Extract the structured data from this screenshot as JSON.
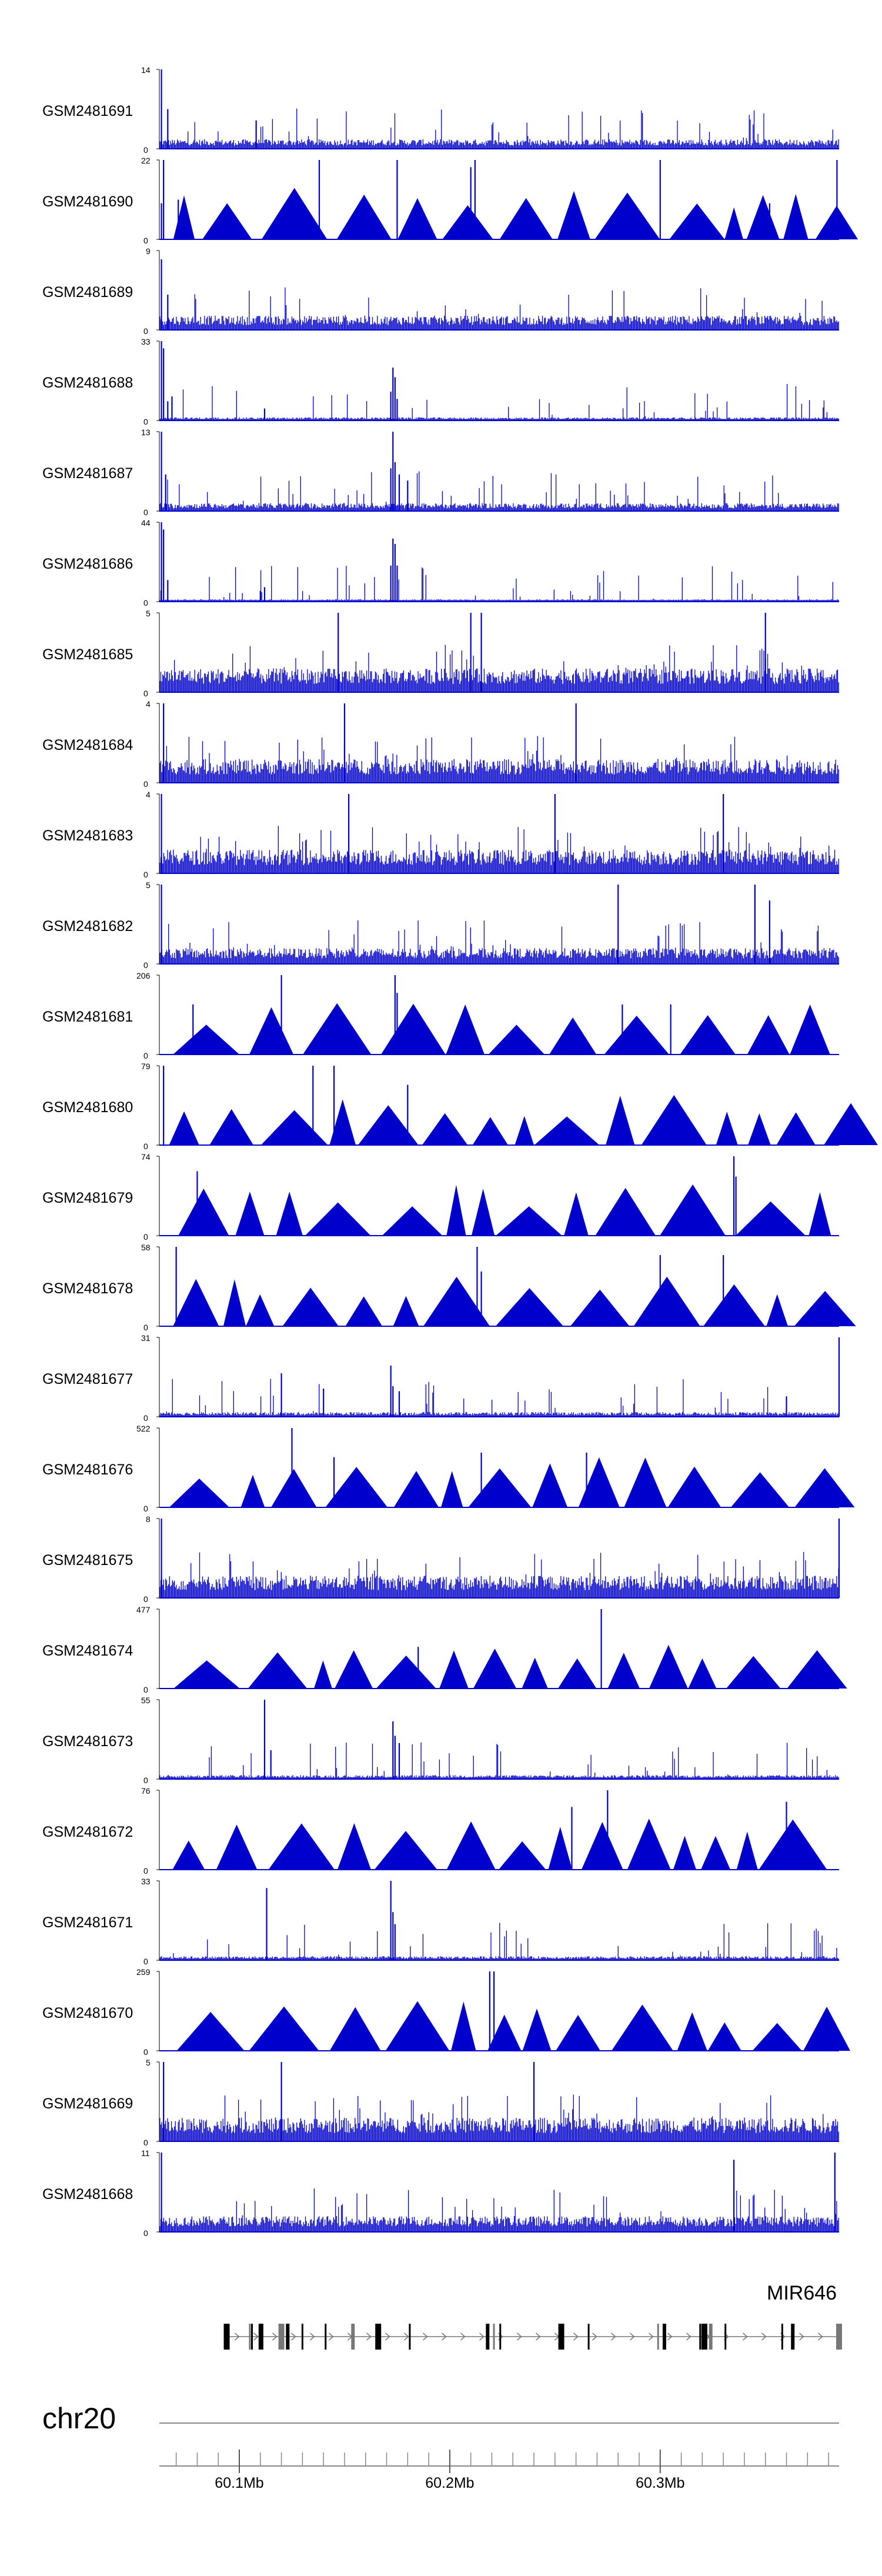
{
  "chart_data": {
    "type": "area",
    "chromosome": "chr20",
    "region_mb": [
      60.062,
      60.385
    ],
    "bar_color": "#0000cc",
    "tracks": [
      {
        "name": "GSM2481691",
        "ymax": 14,
        "ymin": 0,
        "style": "dense",
        "baseline": 0.12,
        "peaks": [
          [
            60.063,
            14
          ],
          [
            60.066,
            7
          ],
          [
            60.108,
            5
          ]
        ]
      },
      {
        "name": "GSM2481690",
        "ymax": 22,
        "ymin": 0,
        "style": "sparse",
        "baseline": 0,
        "peaks": [
          [
            60.063,
            10
          ],
          [
            60.064,
            22
          ],
          [
            60.071,
            11
          ],
          [
            60.138,
            22
          ],
          [
            60.175,
            22
          ],
          [
            60.21,
            20
          ],
          [
            60.212,
            22
          ],
          [
            60.3,
            22
          ],
          [
            60.352,
            10
          ],
          [
            60.384,
            22
          ]
        ]
      },
      {
        "name": "GSM2481689",
        "ymax": 9,
        "ymin": 0,
        "style": "dense",
        "baseline": 0.18,
        "peaks": [
          [
            60.063,
            8
          ],
          [
            60.066,
            4
          ]
        ]
      },
      {
        "name": "GSM2481688",
        "ymax": 33,
        "ymin": 0,
        "style": "dense",
        "baseline": 0.04,
        "peaks": [
          [
            60.063,
            33
          ],
          [
            60.064,
            30
          ],
          [
            60.066,
            8
          ],
          [
            60.068,
            10
          ],
          [
            60.112,
            5
          ],
          [
            60.172,
            12
          ],
          [
            60.173,
            22
          ],
          [
            60.174,
            18
          ],
          [
            60.175,
            9
          ]
        ]
      },
      {
        "name": "GSM2481687",
        "ymax": 13,
        "ymin": 0,
        "style": "dense",
        "baseline": 0.1,
        "peaks": [
          [
            60.063,
            13
          ],
          [
            60.065,
            6
          ],
          [
            60.172,
            7
          ],
          [
            60.173,
            13
          ],
          [
            60.174,
            8
          ],
          [
            60.176,
            6
          ],
          [
            60.18,
            5
          ]
        ]
      },
      {
        "name": "GSM2481686",
        "ymax": 44,
        "ymin": 0,
        "style": "dense",
        "baseline": 0.03,
        "peaks": [
          [
            60.063,
            44
          ],
          [
            60.064,
            40
          ],
          [
            60.066,
            12
          ],
          [
            60.11,
            6
          ],
          [
            60.112,
            8
          ],
          [
            60.172,
            20
          ],
          [
            60.173,
            35
          ],
          [
            60.174,
            32
          ],
          [
            60.175,
            20
          ]
        ]
      },
      {
        "name": "GSM2481685",
        "ymax": 5,
        "ymin": 0,
        "style": "dense",
        "baseline": 0.3,
        "peaks": [
          [
            60.147,
            5
          ],
          [
            60.21,
            5
          ],
          [
            60.215,
            5
          ],
          [
            60.35,
            5
          ]
        ]
      },
      {
        "name": "GSM2481684",
        "ymax": 4,
        "ymin": 0,
        "style": "dense",
        "baseline": 0.3,
        "peaks": [
          [
            60.064,
            4
          ],
          [
            60.15,
            4
          ],
          [
            60.26,
            4
          ]
        ]
      },
      {
        "name": "GSM2481683",
        "ymax": 4,
        "ymin": 0,
        "style": "dense",
        "baseline": 0.3,
        "peaks": [
          [
            60.063,
            4
          ],
          [
            60.152,
            4
          ],
          [
            60.25,
            4
          ],
          [
            60.33,
            4
          ]
        ]
      },
      {
        "name": "GSM2481682",
        "ymax": 5,
        "ymin": 0,
        "style": "dense",
        "baseline": 0.2,
        "peaks": [
          [
            60.063,
            5
          ],
          [
            60.28,
            5
          ],
          [
            60.345,
            5
          ],
          [
            60.352,
            4
          ]
        ]
      },
      {
        "name": "GSM2481681",
        "ymax": 206,
        "ymin": 0,
        "style": "sparse",
        "baseline": 0,
        "peaks": [
          [
            60.078,
            130
          ],
          [
            60.12,
            206
          ],
          [
            60.174,
            206
          ],
          [
            60.175,
            160
          ],
          [
            60.282,
            130
          ],
          [
            60.305,
            130
          ]
        ]
      },
      {
        "name": "GSM2481680",
        "ymax": 79,
        "ymin": 0,
        "style": "sparse",
        "baseline": 0,
        "peaks": [
          [
            60.064,
            79
          ],
          [
            60.135,
            79
          ],
          [
            60.145,
            79
          ],
          [
            60.18,
            60
          ]
        ]
      },
      {
        "name": "GSM2481679",
        "ymax": 74,
        "ymin": 0,
        "style": "sparse",
        "baseline": 0,
        "peaks": [
          [
            60.08,
            60
          ],
          [
            60.335,
            74
          ],
          [
            60.336,
            55
          ]
        ]
      },
      {
        "name": "GSM2481678",
        "ymax": 58,
        "ymin": 0,
        "style": "sparse",
        "baseline": 0,
        "peaks": [
          [
            60.07,
            58
          ],
          [
            60.213,
            58
          ],
          [
            60.215,
            40
          ],
          [
            60.3,
            52
          ],
          [
            60.33,
            52
          ]
        ]
      },
      {
        "name": "GSM2481677",
        "ymax": 31,
        "ymin": 0,
        "style": "dense",
        "baseline": 0.06,
        "peaks": [
          [
            60.12,
            17
          ],
          [
            60.14,
            11
          ],
          [
            60.172,
            20
          ],
          [
            60.173,
            12
          ],
          [
            60.176,
            10
          ],
          [
            60.36,
            8
          ],
          [
            60.385,
            31
          ]
        ]
      },
      {
        "name": "GSM2481676",
        "ymax": 522,
        "ymin": 0,
        "style": "sparse",
        "baseline": 0,
        "peaks": [
          [
            60.125,
            522
          ],
          [
            60.145,
            330
          ],
          [
            60.215,
            360
          ],
          [
            60.265,
            360
          ]
        ]
      },
      {
        "name": "GSM2481675",
        "ymax": 8,
        "ymin": 0,
        "style": "dense",
        "baseline": 0.28,
        "peaks": [
          [
            60.063,
            8
          ],
          [
            60.385,
            8
          ]
        ]
      },
      {
        "name": "GSM2481674",
        "ymax": 477,
        "ymin": 0,
        "style": "sparse",
        "baseline": 0,
        "peaks": [
          [
            60.185,
            250
          ],
          [
            60.272,
            477
          ]
        ]
      },
      {
        "name": "GSM2481673",
        "ymax": 55,
        "ymin": 0,
        "style": "dense",
        "baseline": 0.05,
        "peaks": [
          [
            60.112,
            55
          ],
          [
            60.115,
            20
          ],
          [
            60.173,
            40
          ],
          [
            60.174,
            30
          ],
          [
            60.176,
            25
          ]
        ]
      },
      {
        "name": "GSM2481672",
        "ymax": 76,
        "ymin": 0,
        "style": "sparse",
        "baseline": 0,
        "peaks": [
          [
            60.258,
            60
          ],
          [
            60.275,
            76
          ],
          [
            60.36,
            65
          ]
        ]
      },
      {
        "name": "GSM2481671",
        "ymax": 33,
        "ymin": 0,
        "style": "dense",
        "baseline": 0.05,
        "peaks": [
          [
            60.113,
            30
          ],
          [
            60.172,
            33
          ],
          [
            60.173,
            20
          ],
          [
            60.174,
            15
          ]
        ]
      },
      {
        "name": "GSM2481670",
        "ymax": 259,
        "ymin": 0,
        "style": "sparse",
        "baseline": 0,
        "peaks": [
          [
            60.219,
            259
          ],
          [
            60.221,
            259
          ]
        ]
      },
      {
        "name": "GSM2481669",
        "ymax": 5,
        "ymin": 0,
        "style": "dense",
        "baseline": 0.3,
        "peaks": [
          [
            60.064,
            5
          ],
          [
            60.12,
            5
          ],
          [
            60.24,
            5
          ]
        ]
      },
      {
        "name": "GSM2481668",
        "ymax": 11,
        "ymin": 0,
        "style": "dense",
        "baseline": 0.2,
        "peaks": [
          [
            60.063,
            11
          ],
          [
            60.335,
            10
          ],
          [
            60.383,
            11
          ]
        ]
      }
    ],
    "gene": {
      "name": "MIR646",
      "start_mb": 60.094,
      "end_mb": 60.385,
      "strand": "+",
      "exons_mb": [
        60.094,
        60.105,
        60.106,
        60.11,
        60.111,
        60.12,
        60.123,
        60.13,
        60.141,
        60.154,
        60.166,
        60.181,
        60.218,
        60.221,
        60.224,
        60.253,
        60.266,
        60.299,
        60.302,
        60.319,
        60.321,
        60.324,
        60.331,
        60.358,
        60.363,
        60.385
      ]
    },
    "axis": {
      "label": "chr20",
      "ticks": [
        {
          "value": 60.1,
          "label": "60.1Mb"
        },
        {
          "value": 60.2,
          "label": "60.2Mb"
        },
        {
          "value": 60.3,
          "label": "60.3Mb"
        }
      ],
      "minor_tick_step": 0.01
    }
  }
}
